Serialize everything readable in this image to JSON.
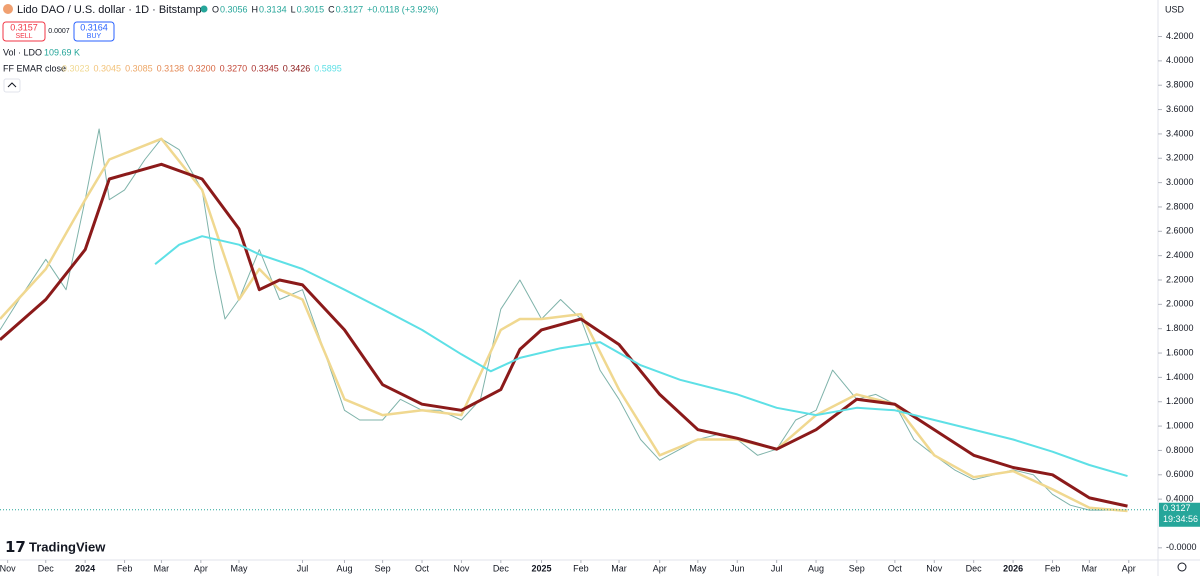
{
  "chart_data": {
    "type": "line",
    "title": "Lido DAO / U.S. dollar · 1D · Bitstamp",
    "ohlc": [
      {
        "k": "O",
        "v": "0.3056"
      },
      {
        "k": "H",
        "v": "0.3134"
      },
      {
        "k": "L",
        "v": "0.3015"
      },
      {
        "k": "C",
        "v": "0.3127"
      }
    ],
    "change": "+0.0118 (+3.92%)",
    "sell": {
      "price": "0.3157",
      "label": "SELL"
    },
    "spread": "0.0007",
    "buy": {
      "price": "0.3164",
      "label": "BUY"
    },
    "volume": {
      "label": "Vol · LDO",
      "value": "109.69 K"
    },
    "indicator": {
      "label": "FF EMAR close",
      "values": [
        0.3023,
        0.3045,
        0.3085,
        0.3138,
        0.32,
        0.327,
        0.3345,
        0.3426,
        0.5895
      ],
      "value_labels": [
        "0.3023",
        "0.3045",
        "0.3085",
        "0.3138",
        "0.3200",
        "0.3270",
        "0.3345",
        "0.3426",
        "0.5895"
      ],
      "colors": [
        "#f0d890",
        "#f3c37a",
        "#eda868",
        "#e48a55",
        "#d86a45",
        "#c44a3a",
        "#a8302e",
        "#8b1a1a",
        "#5ee0e6"
      ]
    },
    "axis_unit": "USD",
    "last_price": 0.3127,
    "countdown": "19:34:56",
    "brand": "TradingView",
    "grid": false,
    "xlim": [
      -6,
      905
    ],
    "xticks": [
      {
        "value": 0,
        "label": "Nov"
      },
      {
        "value": 30,
        "label": "Dec"
      },
      {
        "value": 61,
        "label": "2024"
      },
      {
        "value": 92,
        "label": "Feb"
      },
      {
        "value": 121,
        "label": "Mar"
      },
      {
        "value": 152,
        "label": "Apr"
      },
      {
        "value": 182,
        "label": "May"
      },
      {
        "value": 232,
        "label": "Jul"
      },
      {
        "value": 265,
        "label": "Aug"
      },
      {
        "value": 295,
        "label": "Sep"
      },
      {
        "value": 326,
        "label": "Oct"
      },
      {
        "value": 357,
        "label": "Nov"
      },
      {
        "value": 388,
        "label": "Dec"
      },
      {
        "value": 420,
        "label": "2025"
      },
      {
        "value": 451,
        "label": "Feb"
      },
      {
        "value": 481,
        "label": "Mar"
      },
      {
        "value": 513,
        "label": "Apr"
      },
      {
        "value": 543,
        "label": "May"
      },
      {
        "value": 574,
        "label": "Jun"
      },
      {
        "value": 605,
        "label": "Jul"
      },
      {
        "value": 636,
        "label": "Aug"
      },
      {
        "value": 668,
        "label": "Sep"
      },
      {
        "value": 698,
        "label": "Oct"
      },
      {
        "value": 729,
        "label": "Nov"
      },
      {
        "value": 760,
        "label": "Dec"
      },
      {
        "value": 791,
        "label": "2026"
      },
      {
        "value": 822,
        "label": "Feb"
      },
      {
        "value": 851,
        "label": "Mar"
      },
      {
        "value": 882,
        "label": "Apr"
      }
    ],
    "ylim": [
      -0.1,
      4.5
    ],
    "yticks": [
      {
        "value": 4.2,
        "label": "4.2000"
      },
      {
        "value": 4.0,
        "label": "4.0000"
      },
      {
        "value": 3.8,
        "label": "3.8000"
      },
      {
        "value": 3.6,
        "label": "3.6000"
      },
      {
        "value": 3.4,
        "label": "3.4000"
      },
      {
        "value": 3.2,
        "label": "3.2000"
      },
      {
        "value": 3.0,
        "label": "3.0000"
      },
      {
        "value": 2.8,
        "label": "2.8000"
      },
      {
        "value": 2.6,
        "label": "2.6000"
      },
      {
        "value": 2.4,
        "label": "2.4000"
      },
      {
        "value": 2.2,
        "label": "2.2000"
      },
      {
        "value": 2.0,
        "label": "2.0000"
      },
      {
        "value": 1.8,
        "label": "1.8000"
      },
      {
        "value": 1.6,
        "label": "1.6000"
      },
      {
        "value": 1.4,
        "label": "1.4000"
      },
      {
        "value": 1.2,
        "label": "1.2000"
      },
      {
        "value": 1.0,
        "label": "1.0000"
      },
      {
        "value": 0.8,
        "label": "0.8000"
      },
      {
        "value": 0.6,
        "label": "0.6000"
      },
      {
        "value": 0.4,
        "label": "0.4000"
      },
      {
        "value": 0,
        "label": "-0.0000"
      }
    ],
    "series": [
      {
        "color": "#7fb3aa",
        "width": 1,
        "x": [
          -6,
          9,
          30,
          46,
          61,
          72,
          80,
          92,
          108,
          121,
          135,
          153,
          163,
          171,
          182,
          198,
          214,
          232,
          246,
          265,
          277,
          295,
          309,
          326,
          340,
          357,
          372,
          388,
          403,
          420,
          435,
          451,
          466,
          481,
          498,
          513,
          529,
          543,
          558,
          574,
          590,
          605,
          620,
          636,
          649,
          668,
          683,
          698,
          713,
          729,
          745,
          760,
          776,
          791,
          807,
          822,
          836,
          851,
          868,
          881
        ],
        "values": [
          1.79,
          2.04,
          2.37,
          2.12,
          2.86,
          3.44,
          2.86,
          2.94,
          3.19,
          3.36,
          3.27,
          2.94,
          2.29,
          1.88,
          2.04,
          2.45,
          2.04,
          2.12,
          1.71,
          1.13,
          1.05,
          1.05,
          1.22,
          1.13,
          1.13,
          1.05,
          1.22,
          1.96,
          2.2,
          1.88,
          2.04,
          1.88,
          1.46,
          1.22,
          0.89,
          0.72,
          0.81,
          0.89,
          0.93,
          0.89,
          0.76,
          0.81,
          1.05,
          1.13,
          1.46,
          1.22,
          1.26,
          1.18,
          0.89,
          0.76,
          0.64,
          0.56,
          0.6,
          0.64,
          0.6,
          0.44,
          0.35,
          0.31,
          0.31,
          0.3127
        ]
      },
      {
        "color": "#f0d890",
        "width": 2.5,
        "x": [
          -6,
          30,
          61,
          80,
          121,
          153,
          182,
          198,
          214,
          232,
          265,
          295,
          326,
          357,
          388,
          403,
          420,
          451,
          481,
          513,
          543,
          574,
          605,
          636,
          668,
          698,
          729,
          760,
          791,
          822,
          851,
          881
        ],
        "values": [
          1.88,
          2.29,
          2.86,
          3.19,
          3.36,
          2.94,
          2.04,
          2.29,
          2.12,
          2.04,
          1.22,
          1.09,
          1.13,
          1.09,
          1.79,
          1.88,
          1.88,
          1.92,
          1.3,
          0.76,
          0.89,
          0.89,
          0.81,
          1.09,
          1.26,
          1.18,
          0.76,
          0.58,
          0.63,
          0.48,
          0.33,
          0.3023
        ]
      },
      {
        "color": "#8b1a1a",
        "width": 3,
        "x": [
          -6,
          30,
          61,
          80,
          121,
          153,
          182,
          198,
          214,
          232,
          265,
          295,
          326,
          357,
          388,
          403,
          420,
          451,
          481,
          513,
          543,
          574,
          605,
          636,
          668,
          698,
          729,
          760,
          791,
          822,
          851,
          881
        ],
        "values": [
          1.71,
          2.04,
          2.45,
          3.03,
          3.15,
          3.03,
          2.62,
          2.12,
          2.2,
          2.16,
          1.79,
          1.34,
          1.18,
          1.13,
          1.3,
          1.63,
          1.79,
          1.88,
          1.67,
          1.26,
          0.97,
          0.9,
          0.81,
          0.97,
          1.22,
          1.18,
          0.97,
          0.76,
          0.66,
          0.6,
          0.41,
          0.3426
        ]
      },
      {
        "color": "#5ee0e6",
        "width": 2,
        "x": [
          116,
          135,
          153,
          182,
          198,
          232,
          265,
          295,
          326,
          357,
          380,
          403,
          435,
          466,
          498,
          529,
          574,
          605,
          636,
          668,
          698,
          729,
          791,
          822,
          851,
          881
        ],
        "values": [
          2.33,
          2.49,
          2.56,
          2.49,
          2.41,
          2.29,
          2.12,
          1.96,
          1.79,
          1.59,
          1.45,
          1.56,
          1.64,
          1.69,
          1.5,
          1.38,
          1.26,
          1.15,
          1.09,
          1.15,
          1.13,
          1.05,
          0.89,
          0.79,
          0.68,
          0.5895
        ]
      }
    ]
  }
}
